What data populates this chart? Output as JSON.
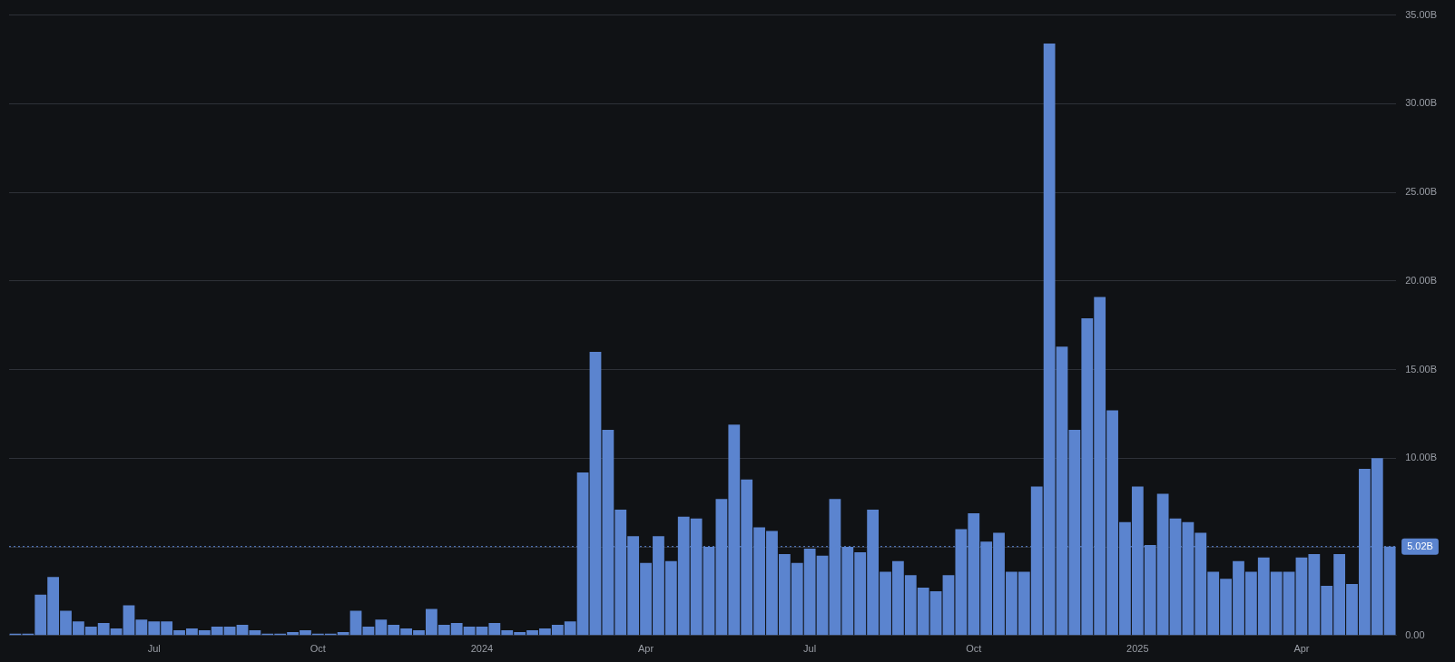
{
  "chart_data": {
    "type": "bar",
    "categories": [
      null,
      null,
      null,
      null,
      null,
      null,
      null,
      null,
      null,
      null,
      null,
      "Jul",
      null,
      null,
      null,
      null,
      null,
      null,
      null,
      null,
      null,
      null,
      null,
      null,
      "Oct",
      null,
      null,
      null,
      null,
      null,
      null,
      null,
      null,
      null,
      null,
      null,
      null,
      "2024",
      null,
      null,
      null,
      null,
      null,
      null,
      null,
      null,
      null,
      null,
      null,
      null,
      "Apr",
      null,
      null,
      null,
      null,
      null,
      null,
      null,
      null,
      null,
      null,
      null,
      null,
      "Jul",
      null,
      null,
      null,
      null,
      null,
      null,
      null,
      null,
      null,
      null,
      null,
      null,
      "Oct",
      null,
      null,
      null,
      null,
      null,
      null,
      null,
      null,
      null,
      null,
      null,
      null,
      "2025",
      null,
      null,
      null,
      null,
      null,
      null,
      null,
      null,
      null,
      null,
      null,
      null,
      "Apr",
      null,
      null,
      null,
      null,
      null,
      null,
      null
    ],
    "series": [
      {
        "color": "#5b84cf",
        "values": [
          0.1,
          0.1,
          2.3,
          3.3,
          1.4,
          0.8,
          0.5,
          0.7,
          0.4,
          1.7,
          0.9,
          0.8,
          0.8,
          0.3,
          0.4,
          0.3,
          0.5,
          0.5,
          0.6,
          0.3,
          0.1,
          0.1,
          0.2,
          0.3,
          0.1,
          0.1,
          0.2,
          1.4,
          0.5,
          0.9,
          0.6,
          0.4,
          0.3,
          1.5,
          0.6,
          0.7,
          0.5,
          0.5,
          0.7,
          0.3,
          0.2,
          0.3,
          0.4,
          0.6,
          0.8,
          9.2,
          16.0,
          11.6,
          7.1,
          5.6,
          4.1,
          5.6,
          4.2,
          6.7,
          6.6,
          5.0,
          7.7,
          11.9,
          8.8,
          6.1,
          5.9,
          4.6,
          4.1,
          4.9,
          4.5,
          7.7,
          5.0,
          4.7,
          7.1,
          3.6,
          4.2,
          3.4,
          2.7,
          2.5,
          3.4,
          6.0,
          6.9,
          5.3,
          5.8,
          3.6,
          3.6,
          8.4,
          33.4,
          16.3,
          11.6,
          17.9,
          19.1,
          12.7,
          6.4,
          8.4,
          5.1,
          8.0,
          6.6,
          6.4,
          5.8,
          3.6,
          3.2,
          4.2,
          3.6,
          4.4,
          3.6,
          3.6,
          4.4,
          4.6,
          2.8,
          4.6,
          2.9,
          9.4,
          10.0,
          5.02
        ]
      }
    ],
    "ylim": [
      0,
      35
    ],
    "yticks": [
      {
        "value": 0,
        "label": "0.00"
      },
      {
        "value": 5,
        "label": null
      },
      {
        "value": 10,
        "label": "10.00B"
      },
      {
        "value": 15,
        "label": "15.00B"
      },
      {
        "value": 20,
        "label": "20.00B"
      },
      {
        "value": 25,
        "label": "25.00B"
      },
      {
        "value": 30,
        "label": "30.00B"
      },
      {
        "value": 35,
        "label": "35.00B"
      }
    ],
    "grid": "y",
    "ref_lines": [
      {
        "axis": "y",
        "value": 5.02,
        "label": "5.02B",
        "color": "#5b84cf",
        "line_style": "dotted"
      }
    ]
  }
}
